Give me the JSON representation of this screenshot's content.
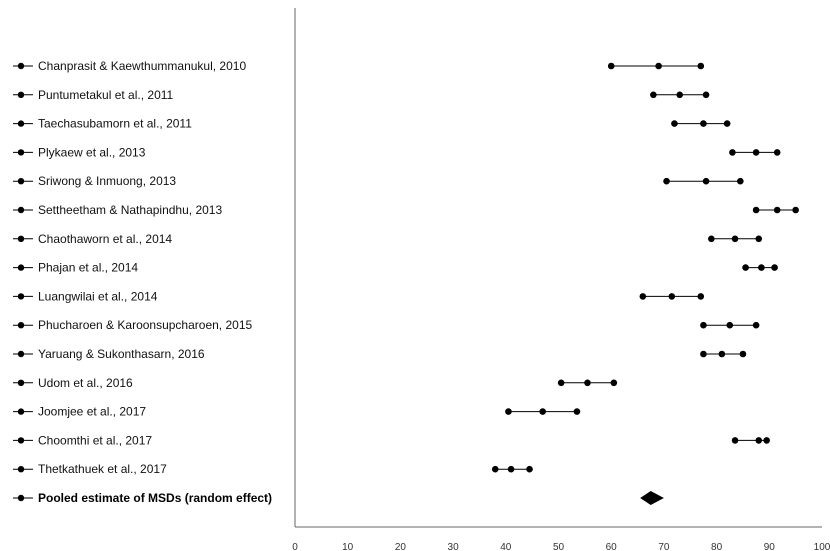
{
  "chart_data": {
    "type": "forest",
    "xlim": [
      0,
      100
    ],
    "xticks": [
      0,
      10,
      20,
      30,
      40,
      50,
      60,
      70,
      80,
      90,
      100
    ],
    "grid": false,
    "legend": "none",
    "studies": [
      {
        "label": "Chanprasit & Kaewthummanukul, 2010",
        "lower": 60.0,
        "estimate": 69.0,
        "upper": 77.0
      },
      {
        "label": "Puntumetakul et al., 2011",
        "lower": 68.0,
        "estimate": 73.0,
        "upper": 78.0
      },
      {
        "label": "Taechasubamorn et al., 2011",
        "lower": 72.0,
        "estimate": 77.5,
        "upper": 82.0
      },
      {
        "label": "Plykaew et al., 2013",
        "lower": 83.0,
        "estimate": 87.5,
        "upper": 91.5
      },
      {
        "label": "Sriwong & Inmuong, 2013",
        "lower": 70.5,
        "estimate": 78.0,
        "upper": 84.5
      },
      {
        "label": "Settheetham & Nathapindhu, 2013",
        "lower": 87.5,
        "estimate": 91.5,
        "upper": 95.0
      },
      {
        "label": "Chaothaworn et al., 2014",
        "lower": 79.0,
        "estimate": 83.5,
        "upper": 88.0
      },
      {
        "label": "Phajan et al., 2014",
        "lower": 85.5,
        "estimate": 88.5,
        "upper": 91.0
      },
      {
        "label": "Luangwilai et al., 2014",
        "lower": 66.0,
        "estimate": 71.5,
        "upper": 77.0
      },
      {
        "label": "Phucharoen & Karoonsupcharoen, 2015",
        "lower": 77.5,
        "estimate": 82.5,
        "upper": 87.5
      },
      {
        "label": "Yaruang & Sukonthasarn, 2016",
        "lower": 77.5,
        "estimate": 81.0,
        "upper": 85.0
      },
      {
        "label": "Udom et al., 2016",
        "lower": 50.5,
        "estimate": 55.5,
        "upper": 60.5
      },
      {
        "label": "Joomjee et al., 2017",
        "lower": 40.5,
        "estimate": 47.0,
        "upper": 53.5
      },
      {
        "label": "Choomthi et al., 2017",
        "lower": 83.5,
        "estimate": 88.0,
        "upper": 89.5
      },
      {
        "label": "Thetkathuek et al., 2017",
        "lower": 38.0,
        "estimate": 41.0,
        "upper": 44.5
      }
    ],
    "pooled": {
      "label": "Pooled estimate of MSDs (random effect)",
      "lower": 65.5,
      "estimate": 67.5,
      "upper": 70.0
    },
    "colors": {
      "marker": "#000000",
      "line": "#000000",
      "axis": "#666666"
    }
  }
}
